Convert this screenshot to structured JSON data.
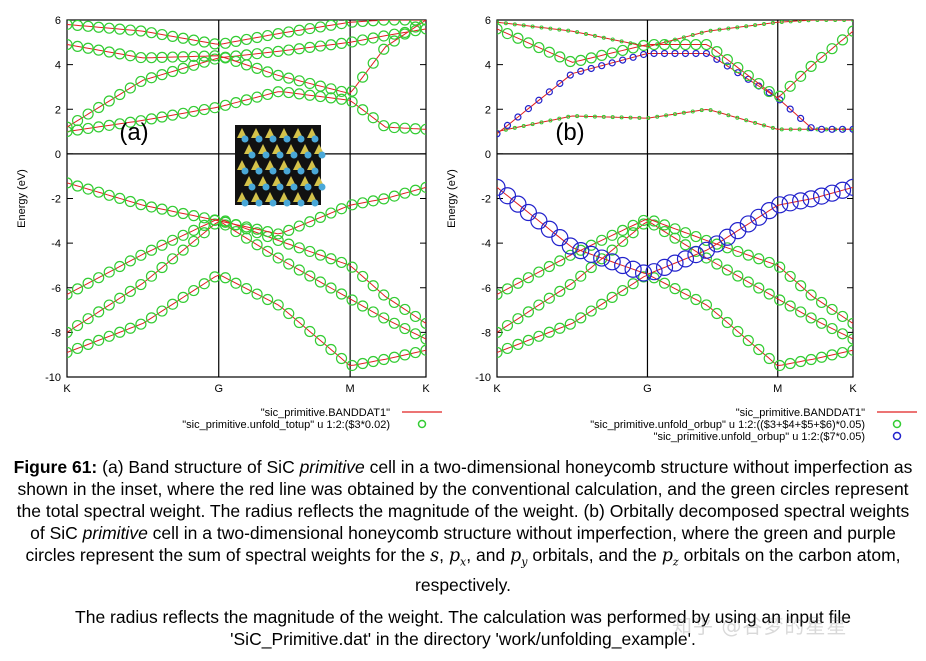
{
  "chart_data": [
    {
      "type": "line",
      "panel_label": "(a)",
      "ylabel": "Energy (eV)",
      "ylim": [
        -10,
        6
      ],
      "yticks": [
        "6",
        "4",
        "2",
        "0",
        "-2",
        "-4",
        "-6",
        "-8",
        "-10"
      ],
      "xticks": [
        "K",
        "G",
        "M",
        "K"
      ],
      "xtick_positions": [
        0,
        1,
        1.866,
        2.366
      ],
      "has_inset": true,
      "legend_position": "bottom-right",
      "legend": [
        {
          "label": "\"sic_primitive.BANDDAT1\"",
          "color": "#e02020",
          "style": "line"
        },
        {
          "label": "\"sic_primitive.unfold_totup\" u 1:2:($3*0.02)",
          "color": "#33cc33",
          "style": "circle"
        }
      ],
      "series": [
        {
          "name": "band-1",
          "x": [
            0,
            0.5,
            1,
            1.4,
            1.866,
            2.1,
            2.366
          ],
          "values": [
            -8.9,
            -7.6,
            -5.4,
            -6.8,
            -9.5,
            -9.2,
            -8.8
          ]
        },
        {
          "name": "band-2",
          "x": [
            0,
            0.5,
            1,
            1.4,
            1.866,
            2.1,
            2.366
          ],
          "values": [
            -8.0,
            -5.8,
            -3.0,
            -4.7,
            -6.5,
            -7.4,
            -8.3
          ]
        },
        {
          "name": "band-3",
          "x": [
            0,
            0.5,
            1,
            1.4,
            1.866,
            2.1,
            2.366
          ],
          "values": [
            -6.3,
            -4.5,
            -2.9,
            -3.9,
            -5.0,
            -6.4,
            -7.6
          ]
        },
        {
          "name": "band-4",
          "x": [
            0,
            0.5,
            1,
            1.4,
            1.866,
            2.1,
            2.366
          ],
          "values": [
            -1.3,
            -2.3,
            -3.0,
            -3.6,
            -2.3,
            -2.0,
            -1.5
          ]
        },
        {
          "name": "band-5",
          "x": [
            0,
            0.5,
            1,
            1.4,
            1.866,
            2.1,
            2.366
          ],
          "values": [
            1.0,
            1.5,
            2.1,
            2.8,
            2.4,
            1.2,
            1.1
          ]
        },
        {
          "name": "band-6",
          "x": [
            0,
            0.5,
            1,
            1.4,
            1.866,
            2.1,
            2.366
          ],
          "values": [
            1.2,
            3.3,
            4.3,
            4.6,
            5.0,
            5.3,
            5.6
          ]
        },
        {
          "name": "band-7",
          "x": [
            0,
            0.5,
            1,
            1.4,
            1.866,
            2.1,
            2.366
          ],
          "values": [
            4.9,
            4.3,
            4.4,
            3.5,
            2.7,
            4.8,
            6.0
          ]
        },
        {
          "name": "band-8",
          "x": [
            0,
            0.5,
            1,
            1.4,
            1.866,
            2.1,
            2.366
          ],
          "values": [
            5.8,
            5.5,
            4.9,
            5.4,
            5.9,
            6.0,
            6.0
          ]
        }
      ]
    },
    {
      "type": "line",
      "panel_label": "(b)",
      "ylabel": "Energy (eV)",
      "ylim": [
        -10,
        6
      ],
      "yticks": [
        "6",
        "4",
        "2",
        "0",
        "-2",
        "-4",
        "-6",
        "-8",
        "-10"
      ],
      "xticks": [
        "K",
        "G",
        "M",
        "K"
      ],
      "xtick_positions": [
        0,
        1,
        1.866,
        2.366
      ],
      "legend_position": "bottom-right",
      "legend": [
        {
          "label": "\"sic_primitive.BANDDAT1\"",
          "color": "#e02020",
          "style": "line"
        },
        {
          "label": "\"sic_primitive.unfold_orbup\" u 1:2:(($3+$4+$5+$6)*0.05)",
          "color": "#33cc33",
          "style": "circle"
        },
        {
          "label": "\"sic_primitive.unfold_orbup\" u 1:2:($7*0.05)",
          "color": "#2222cc",
          "style": "circle"
        }
      ],
      "series": [
        {
          "name": "band-1",
          "x": [
            0,
            0.5,
            1,
            1.4,
            1.866,
            2.1,
            2.366
          ],
          "values": [
            -8.9,
            -7.6,
            -5.4,
            -6.8,
            -9.5,
            -9.2,
            -8.8
          ],
          "weight": "green"
        },
        {
          "name": "band-2",
          "x": [
            0,
            0.5,
            1,
            1.4,
            1.866,
            2.1,
            2.366
          ],
          "values": [
            -8.0,
            -5.8,
            -3.0,
            -4.7,
            -6.5,
            -7.4,
            -8.3
          ],
          "weight": "green"
        },
        {
          "name": "band-3",
          "x": [
            0,
            0.5,
            1,
            1.4,
            1.866,
            2.1,
            2.366
          ],
          "values": [
            -6.3,
            -4.5,
            -2.9,
            -3.9,
            -5.0,
            -6.4,
            -7.6
          ],
          "weight": "green"
        },
        {
          "name": "band-4",
          "x": [
            0,
            0.5,
            1,
            1.4,
            1.866,
            2.1,
            2.366
          ],
          "values": [
            -1.5,
            -4.2,
            -5.4,
            -4.3,
            -2.3,
            -2.0,
            -1.5
          ],
          "weight": "purple"
        },
        {
          "name": "band-5",
          "x": [
            0,
            0.5,
            1,
            1.4,
            1.866,
            2.1,
            2.366
          ],
          "values": [
            1.0,
            1.7,
            1.6,
            2.0,
            1.1,
            1.1,
            1.1
          ],
          "weight": "none"
        },
        {
          "name": "band-6",
          "x": [
            0,
            0.5,
            1,
            1.4,
            1.866,
            2.1,
            2.366
          ],
          "values": [
            0.9,
            3.6,
            4.5,
            4.5,
            2.5,
            1.1,
            1.1
          ],
          "weight": "purple"
        },
        {
          "name": "band-7",
          "x": [
            0,
            0.5,
            1,
            1.4,
            1.866,
            2.1,
            2.366
          ],
          "values": [
            5.6,
            4.1,
            4.9,
            4.9,
            2.5,
            4.0,
            5.5
          ],
          "weight": "green"
        },
        {
          "name": "band-8",
          "x": [
            0,
            0.5,
            1,
            1.4,
            1.866,
            2.1,
            2.366
          ],
          "values": [
            5.9,
            5.5,
            4.8,
            5.5,
            5.9,
            6.0,
            6.0
          ],
          "weight": "none"
        }
      ]
    }
  ],
  "caption": {
    "fig_label": "Figure 61:",
    "part1": " (a) Band structure of SiC ",
    "primitive1": "primitive",
    "part2": " cell in a two-dimensional honeycomb structure without imperfection as shown in the inset, where the red line was obtained by the conventional calculation, and the green circles represent the total spectral weight. The radius reflects the magnitude of the weight. (b) Orbitally decomposed spectral weights of SiC ",
    "primitive2": "primitive",
    "part3": " cell in a two-dimensional honeycomb structure without imperfection, where the green and purple circles represent the sum of spectral weights for the ",
    "math_s": "s",
    "comma1": ", ",
    "math_px": "p",
    "sub_x": "x",
    "and1": ", and ",
    "math_py": "p",
    "sub_y": "y",
    "part4": " orbitals, and the ",
    "math_pz": "p",
    "sub_z": "z",
    "part5": " orbitals on the carbon atom, respectively.",
    "tail": "The radius reflects the magnitude of the weight. The calculation was performed by using an input file 'SiC_Primitive.dat' in the directory 'work/unfolding_example'."
  },
  "watermark": "知乎 @谷梦的星星",
  "colors": {
    "band_line": "#e02020",
    "green_circle": "#33cc33",
    "purple_circle": "#2222cc",
    "axis": "#000000"
  }
}
